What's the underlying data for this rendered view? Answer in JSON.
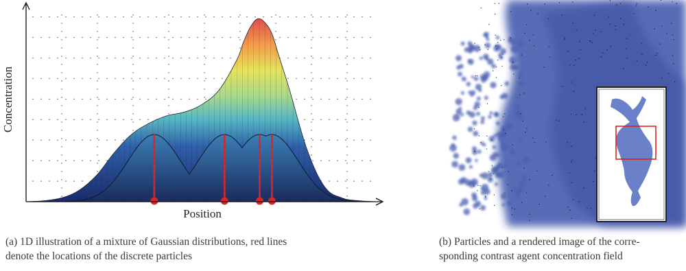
{
  "figure": {
    "panel_a": {
      "caption_line1": "(a)  1D illustration of a mixture of Gaussian distributions, red lines",
      "caption_line2": "denote the locations of the discrete particles",
      "colors": {
        "particle": "#d62728",
        "grid_dot": "#444444"
      }
    },
    "panel_b": {
      "caption_line1": "(b)  Particles and a rendered image of the corre-",
      "caption_line2": "sponding contrast agent concentration field",
      "colors": {
        "field": "#4a5fb0",
        "inset_box": "#e02020"
      }
    }
  },
  "chart_data": {
    "type": "area",
    "xlabel": "Position",
    "ylabel": "Concentration",
    "xlim": [
      0,
      100
    ],
    "ylim": [
      0,
      100
    ],
    "grid": true,
    "particles": [
      {
        "x": 36.5,
        "height": 36
      },
      {
        "x": 56.5,
        "height": 36
      },
      {
        "x": 66.5,
        "height": 36
      },
      {
        "x": 70.0,
        "height": 36
      }
    ],
    "mixture": {
      "x": [
        0,
        5,
        10,
        15,
        20,
        25,
        30,
        35,
        40,
        45,
        50,
        55,
        60,
        62,
        64,
        66,
        68,
        70,
        72,
        75,
        80,
        85,
        90,
        95,
        100
      ],
      "y": [
        0,
        0.5,
        2,
        6,
        14,
        26,
        36,
        42,
        46,
        48,
        52,
        60,
        76,
        86,
        94,
        98,
        96,
        90,
        78,
        60,
        28,
        8,
        2,
        0.5,
        0
      ]
    }
  }
}
